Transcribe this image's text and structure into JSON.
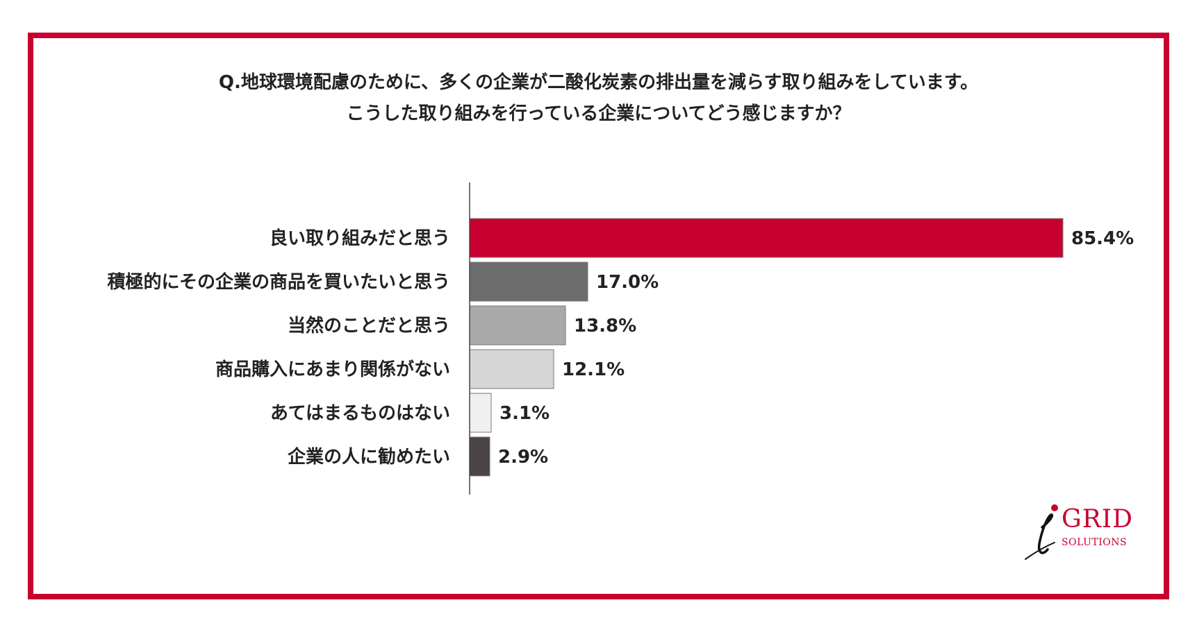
{
  "title_lines": [
    "Q.地球環境配慮のために、多くの企業が二酸化炭素の排出量を減らす取り組みをしています。",
    "こうした取り組みを行っている企業についてどう感じますか？"
  ],
  "logo": {
    "grid": "GRID",
    "solutions": "SOLUTIONS"
  },
  "colors": {
    "frame": "#c8002f"
  },
  "chart_data": {
    "type": "bar",
    "orientation": "horizontal",
    "categories": [
      "良い取り組みだと思う",
      "積極的にその企業の商品を買いたいと思う",
      "当然のことだと思う",
      "商品購入にあまり関係がない",
      "あてはまるものはない",
      "企業の人に勧めたい"
    ],
    "values": [
      85.4,
      17.0,
      13.8,
      12.1,
      3.1,
      2.9
    ],
    "value_labels": [
      "85.4%",
      "17.0%",
      "13.8%",
      "12.1%",
      "3.1%",
      "2.9%"
    ],
    "bar_colors": [
      "#c8002f",
      "#6d6d6d",
      "#a9a9a9",
      "#d6d6d6",
      "#f0f0f0",
      "#4a4444"
    ],
    "xlim": [
      0,
      100
    ],
    "grid": false,
    "legend": "none"
  }
}
